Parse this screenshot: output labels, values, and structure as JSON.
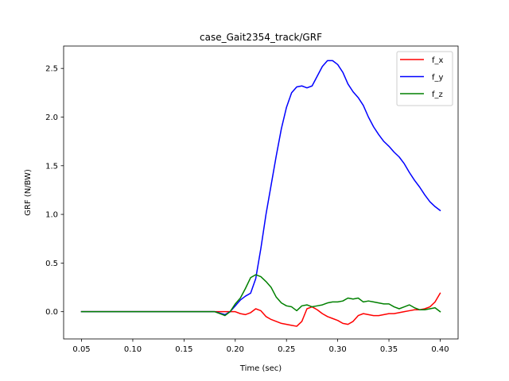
{
  "chart_data": {
    "type": "line",
    "title": "case_Gait2354_track/GRF",
    "xlabel": "Time (sec)",
    "ylabel": "GRF (N/BW)",
    "xlim": [
      0.0325,
      0.4175
    ],
    "ylim": [
      -0.28,
      2.73
    ],
    "xticks": [
      0.05,
      0.1,
      0.15,
      0.2,
      0.25,
      0.3,
      0.35,
      0.4
    ],
    "xtick_labels": [
      "0.05",
      "0.10",
      "0.15",
      "0.20",
      "0.25",
      "0.30",
      "0.35",
      "0.40"
    ],
    "yticks": [
      0.0,
      0.5,
      1.0,
      1.5,
      2.0,
      2.5
    ],
    "ytick_labels": [
      "0.0",
      "0.5",
      "1.0",
      "1.5",
      "2.0",
      "2.5"
    ],
    "grid": false,
    "legend_position": "top-right",
    "series": [
      {
        "name": "f_x",
        "color": "#ff0000",
        "x": [
          0.05,
          0.1,
          0.15,
          0.18,
          0.19,
          0.195,
          0.2,
          0.205,
          0.21,
          0.215,
          0.22,
          0.225,
          0.23,
          0.235,
          0.24,
          0.245,
          0.25,
          0.255,
          0.26,
          0.265,
          0.27,
          0.275,
          0.28,
          0.285,
          0.29,
          0.295,
          0.3,
          0.305,
          0.31,
          0.315,
          0.32,
          0.325,
          0.33,
          0.335,
          0.34,
          0.345,
          0.35,
          0.355,
          0.36,
          0.365,
          0.37,
          0.375,
          0.38,
          0.385,
          0.39,
          0.395,
          0.4
        ],
        "y": [
          0.0,
          0.0,
          0.0,
          0.0,
          0.0,
          0.0,
          0.0,
          -0.02,
          -0.03,
          -0.01,
          0.03,
          0.01,
          -0.05,
          -0.08,
          -0.1,
          -0.12,
          -0.13,
          -0.14,
          -0.15,
          -0.1,
          0.03,
          0.05,
          0.02,
          -0.02,
          -0.05,
          -0.07,
          -0.09,
          -0.12,
          -0.13,
          -0.1,
          -0.04,
          -0.02,
          -0.03,
          -0.04,
          -0.04,
          -0.03,
          -0.02,
          -0.02,
          -0.01,
          0.0,
          0.01,
          0.02,
          0.02,
          0.03,
          0.05,
          0.1,
          0.19
        ]
      },
      {
        "name": "f_y",
        "color": "#0000ff",
        "x": [
          0.05,
          0.1,
          0.15,
          0.18,
          0.19,
          0.195,
          0.2,
          0.205,
          0.21,
          0.215,
          0.22,
          0.225,
          0.23,
          0.235,
          0.24,
          0.245,
          0.25,
          0.255,
          0.26,
          0.265,
          0.27,
          0.275,
          0.28,
          0.285,
          0.29,
          0.295,
          0.3,
          0.305,
          0.31,
          0.315,
          0.32,
          0.325,
          0.33,
          0.335,
          0.34,
          0.345,
          0.35,
          0.355,
          0.36,
          0.365,
          0.37,
          0.375,
          0.38,
          0.385,
          0.39,
          0.395,
          0.4
        ],
        "y": [
          0.0,
          0.0,
          0.0,
          0.0,
          -0.03,
          0.0,
          0.06,
          0.12,
          0.16,
          0.19,
          0.34,
          0.65,
          1.0,
          1.3,
          1.6,
          1.88,
          2.1,
          2.25,
          2.31,
          2.32,
          2.3,
          2.32,
          2.42,
          2.52,
          2.58,
          2.58,
          2.54,
          2.46,
          2.34,
          2.26,
          2.2,
          2.12,
          2.0,
          1.9,
          1.82,
          1.75,
          1.7,
          1.64,
          1.59,
          1.52,
          1.43,
          1.35,
          1.28,
          1.2,
          1.13,
          1.08,
          1.04
        ]
      },
      {
        "name": "f_z",
        "color": "#008000",
        "x": [
          0.05,
          0.1,
          0.15,
          0.18,
          0.19,
          0.195,
          0.2,
          0.205,
          0.21,
          0.215,
          0.22,
          0.225,
          0.23,
          0.235,
          0.24,
          0.245,
          0.25,
          0.255,
          0.26,
          0.265,
          0.27,
          0.275,
          0.28,
          0.285,
          0.29,
          0.295,
          0.3,
          0.305,
          0.31,
          0.315,
          0.32,
          0.325,
          0.33,
          0.335,
          0.34,
          0.345,
          0.35,
          0.355,
          0.36,
          0.365,
          0.37,
          0.375,
          0.38,
          0.385,
          0.39,
          0.395,
          0.4
        ],
        "y": [
          0.0,
          0.0,
          0.0,
          0.0,
          -0.04,
          0.0,
          0.08,
          0.14,
          0.24,
          0.35,
          0.38,
          0.36,
          0.31,
          0.25,
          0.15,
          0.09,
          0.06,
          0.05,
          0.01,
          0.06,
          0.07,
          0.05,
          0.06,
          0.07,
          0.09,
          0.1,
          0.1,
          0.11,
          0.14,
          0.13,
          0.14,
          0.1,
          0.11,
          0.1,
          0.09,
          0.08,
          0.08,
          0.05,
          0.03,
          0.05,
          0.07,
          0.04,
          0.02,
          0.02,
          0.03,
          0.04,
          0.0
        ]
      }
    ]
  }
}
